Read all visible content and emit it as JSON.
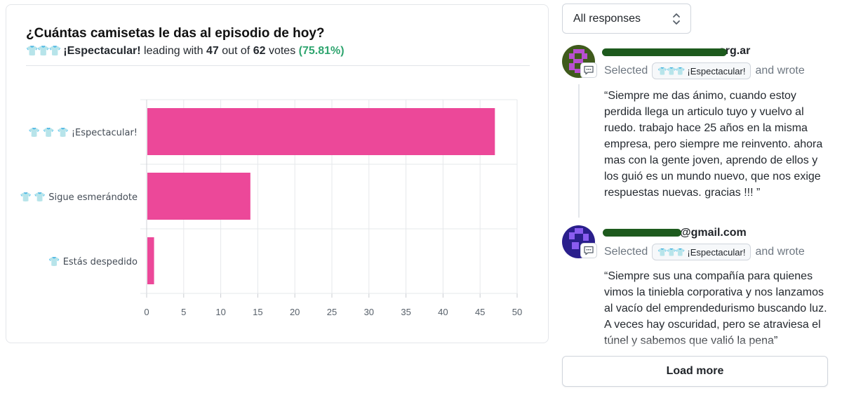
{
  "poll": {
    "question": "¿Cuántas camisetas le das al episodio de hoy?",
    "leader_icons": "👕👕👕",
    "leader_label": "¡Espectacular!",
    "leading_text": "leading with",
    "leader_votes": "47",
    "out_of_text": "out of",
    "total_votes": "62",
    "votes_text": "votes",
    "leader_pct": "(75.81%)"
  },
  "chart_data": {
    "type": "bar",
    "orientation": "horizontal",
    "categories": [
      "👕 👕 👕  ¡Espectacular!",
      "👕 👕  Sigue esmerándote",
      "👕  Estás despedido"
    ],
    "values": [
      47,
      14,
      1
    ],
    "xlim": [
      0,
      50
    ],
    "x_ticks": [
      "0",
      "5",
      "10",
      "15",
      "20",
      "25",
      "30",
      "35",
      "40",
      "45",
      "50"
    ],
    "bar_color": "#ec4899",
    "grid": true
  },
  "filter": {
    "value": "All responses"
  },
  "responses": [
    {
      "email_visible": "...@...org.ar",
      "email_tail": "org.ar",
      "selected_text": "Selected",
      "choice_icons": "👕👕👕",
      "choice_label": "¡Espectacular!",
      "wrote_text": "and wrote",
      "quote": "“Siempre me das ánimo, cuando estoy perdida llega un articulo tuyo y vuelvo al ruedo. trabajo hace 25 años en la misma empresa, pero siempre me reinvento. ahora mas con la gente joven, aprendo de ellos y los guió es un mundo nuevo, que nos exige respuestas nuevas. gracias !!! ”"
    },
    {
      "email_tail": "@gmail.com",
      "selected_text": "Selected",
      "choice_icons": "👕👕👕",
      "choice_label": "¡Espectacular!",
      "wrote_text": "and wrote",
      "quote": "“Siempre sus una compañía para quienes vimos la tiniebla corporativa y nos lanzamos al vacío del emprendedurismo buscando luz. A veces hay oscuridad, pero se atraviesa el túnel y sabemos que valió la pena”"
    }
  ],
  "load_more": {
    "label": "Load more"
  }
}
